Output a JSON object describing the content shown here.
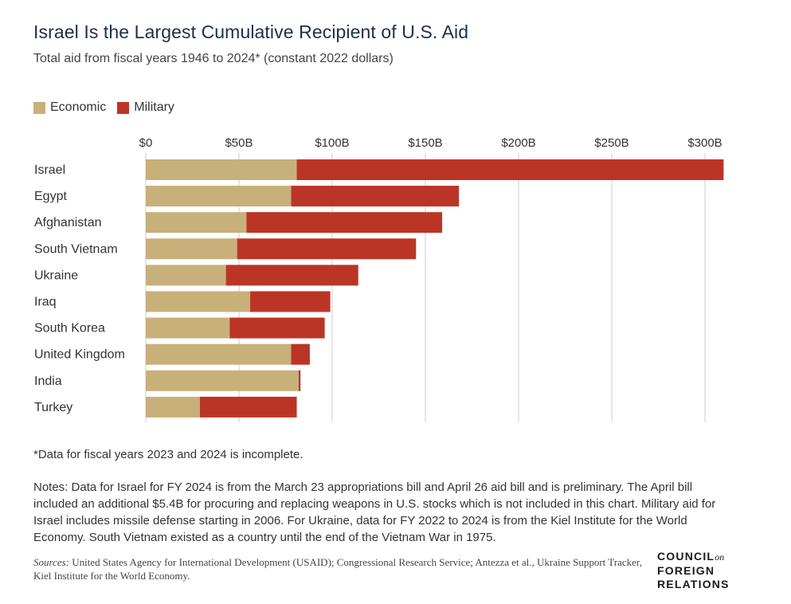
{
  "title": "Israel Is the Largest Cumulative Recipient of U.S. Aid",
  "subtitle": "Total aid from fiscal years 1946 to 2024* (constant 2022 dollars)",
  "footnote": "*Data for fiscal years 2023 and 2024 is incomplete.",
  "notes": "Notes: Data for Israel for FY 2024 is from the March 23 appropriations bill and April 26 aid bill and is preliminary. The April bill included an additional $5.4B for procuring and replacing weapons in U.S. stocks which is not included in this chart. Military aid for Israel includes missile defense starting in 2006. For Ukraine, data for FY 2022 to 2024 is from the Kiel Institute for the World Economy. South Vietnam existed as a country until the end of the Vietnam War in 1975.",
  "sources_label": "Sources:",
  "sources_text": "United States Agency for International Development (USAID); Congressional Research Service; Antezza et al., Ukraine Support Tracker, Kiel Institute for the World Economy.",
  "logo": {
    "line1": "COUNCIL",
    "on": "on",
    "line2": "FOREIGN",
    "line3": "RELATIONS"
  },
  "colors": {
    "economic": "#c8b07b",
    "military": "#bb3526",
    "grid": "#cccccc",
    "title": "#1c2f4d"
  },
  "chart_data": {
    "type": "bar",
    "orientation": "horizontal",
    "stacked": true,
    "categories": [
      "Israel",
      "Egypt",
      "Afghanistan",
      "South Vietnam",
      "Ukraine",
      "Iraq",
      "South Korea",
      "United Kingdom",
      "India",
      "Turkey"
    ],
    "series": [
      {
        "name": "Economic",
        "values": [
          81,
          78,
          54,
          49,
          43,
          56,
          45,
          78,
          82,
          29
        ]
      },
      {
        "name": "Military",
        "values": [
          229,
          90,
          105,
          96,
          71,
          43,
          51,
          10,
          1,
          52
        ]
      }
    ],
    "xticks": [
      "$0",
      "$50B",
      "$100B",
      "$150B",
      "$200B",
      "$250B",
      "$300B"
    ],
    "xtick_values": [
      0,
      50,
      100,
      150,
      200,
      250,
      300
    ],
    "xlim": [
      0,
      310
    ],
    "grid": true,
    "legend_position": "top-left"
  }
}
